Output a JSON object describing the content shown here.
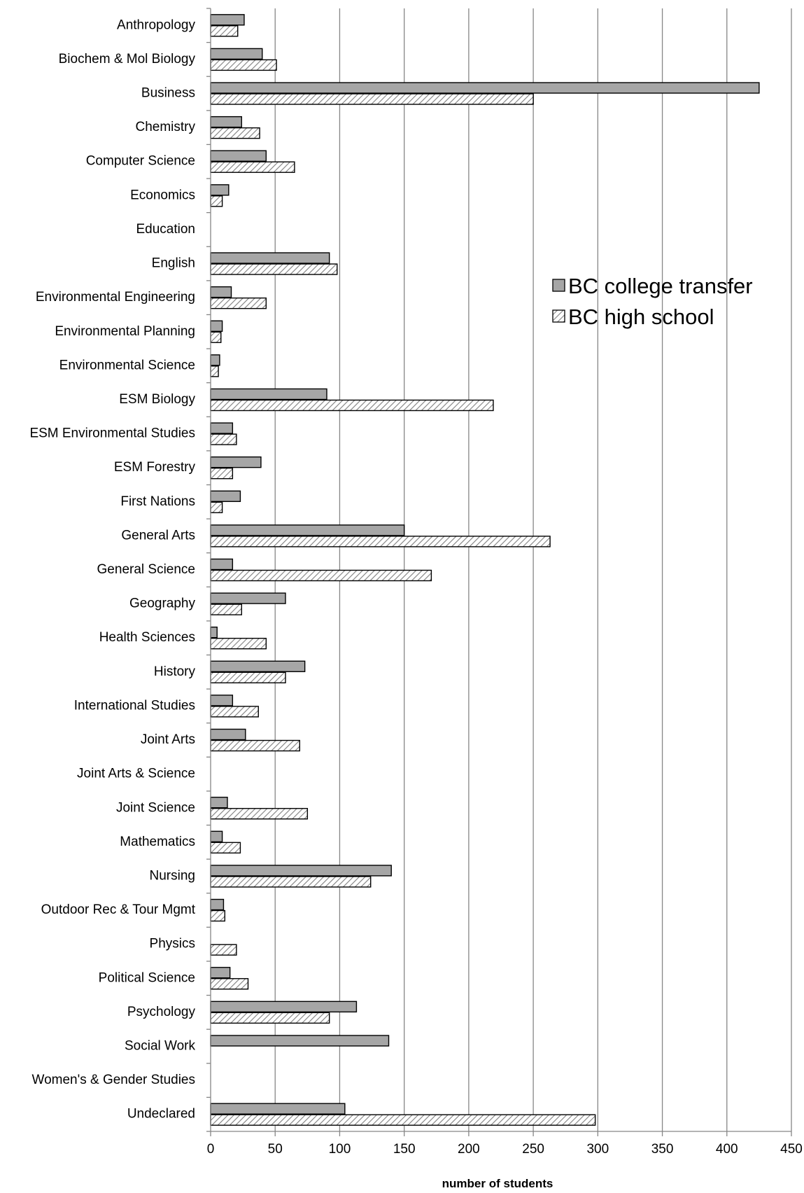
{
  "chart_data": {
    "type": "bar",
    "orientation": "horizontal",
    "categories": [
      "Anthropology",
      "Biochem & Mol Biology",
      "Business",
      "Chemistry",
      "Computer Science",
      "Economics",
      "Education",
      "English",
      "Environmental Engineering",
      "Environmental Planning",
      "Environmental Science",
      "ESM Biology",
      "ESM Environmental Studies",
      "ESM Forestry",
      "First Nations",
      "General Arts",
      "General Science",
      "Geography",
      "Health Sciences",
      "History",
      "International Studies",
      "Joint Arts",
      "Joint Arts & Science",
      "Joint Science",
      "Mathematics",
      "Nursing",
      "Outdoor Rec & Tour Mgmt",
      "Physics",
      "Political Science",
      "Psychology",
      "Social Work",
      "Women's & Gender Studies",
      "Undeclared"
    ],
    "series": [
      {
        "name": "BC college transfer",
        "fill": "solid-gray",
        "values": [
          26,
          40,
          425,
          24,
          43,
          14,
          0,
          92,
          16,
          9,
          7,
          90,
          17,
          39,
          23,
          150,
          17,
          58,
          5,
          73,
          17,
          27,
          0,
          13,
          9,
          140,
          10,
          0,
          15,
          113,
          138,
          0,
          104
        ]
      },
      {
        "name": "BC high school",
        "fill": "diagonal-hatch",
        "values": [
          21,
          51,
          250,
          38,
          65,
          9,
          0,
          98,
          43,
          8,
          6,
          219,
          20,
          17,
          9,
          263,
          171,
          24,
          43,
          58,
          37,
          69,
          0,
          75,
          23,
          124,
          11,
          20,
          29,
          92,
          0,
          0,
          298
        ]
      }
    ],
    "xlabel": "number of students",
    "ylabel": "",
    "xlim": [
      0,
      450
    ],
    "xticks": [
      0,
      50,
      100,
      150,
      200,
      250,
      300,
      350,
      400,
      450
    ],
    "grid": true,
    "legend_position": "upper-right-inside",
    "colors": {
      "bar_solid": "#a6a6a6",
      "bar_outline": "#000000",
      "hatch_line": "#7f7f7f",
      "gridline": "#868686",
      "axis": "#868686"
    }
  }
}
